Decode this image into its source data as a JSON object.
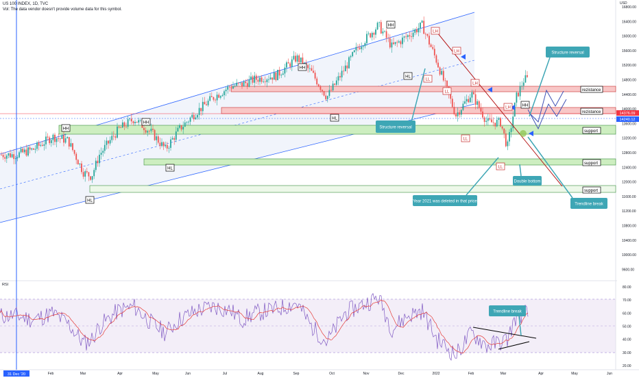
{
  "header": {
    "symbol_line": "US 100 INDEX, 1D, TVC",
    "vol_line": "Vol: The data vendor doesn't provide volume data for this symbol."
  },
  "currency": "USD",
  "price_axis": {
    "ticks": [
      "16800.00",
      "16400.00",
      "16000.00",
      "15600.00",
      "15200.00",
      "14800.00",
      "14400.00",
      "14000.00",
      "13600.00",
      "13200.00",
      "12800.00",
      "12400.00",
      "12000.00",
      "11600.00",
      "11200.00",
      "10800.00",
      "10400.00",
      "10000.00",
      "9600.00"
    ],
    "price_labels": [
      {
        "text": "14376.09",
        "color": "#f23645"
      },
      {
        "text": "14240.12",
        "color": "#2962ff"
      }
    ]
  },
  "rsi": {
    "label": "RSI",
    "ticks": [
      "80.00",
      "70.00",
      "60.00",
      "50.00",
      "40.00",
      "30.00",
      "20.00"
    ]
  },
  "time_axis": {
    "date_badge": "31 Dec '20",
    "ticks": [
      "Feb",
      "Mar",
      "Apr",
      "May",
      "Jun",
      "Jul",
      "Aug",
      "Sep",
      "Oct",
      "Nov",
      "Dec",
      "2022",
      "Feb",
      "Mar",
      "Apr",
      "May",
      "Jun"
    ]
  },
  "markers": [
    "HH",
    "HH",
    "HL",
    "HL",
    "HH",
    "HH",
    "HL",
    "HL",
    "LH",
    "LL",
    "LH",
    "LL",
    "LH",
    "LL",
    "HH"
  ],
  "zone_labels": [
    "rezistance",
    "rezistance",
    "support",
    "support",
    "support"
  ],
  "callouts": [
    "Structure reversal",
    "Structure reversal",
    "Year 2021 was deleted in that price",
    "Double bottom",
    "Trendline break",
    "Trendline break"
  ],
  "colors": {
    "up": "#26a69a",
    "down": "#ef5350",
    "rsi": "#7e57c2",
    "rsi_ma": "#e53935",
    "resistance_fill": "#f8c7c7",
    "support_fill": "#cdeec0",
    "callout": "#3ea6b5",
    "channel": "#2962ff",
    "trendline": "#b71c1c",
    "arrow": "#3f51b5"
  },
  "chart_data": {
    "type": "candlestick",
    "title": "US 100 INDEX, 1D, TVC",
    "ylabel": "USD",
    "ylim": [
      9400,
      17200
    ],
    "x": [
      "2020-12-31",
      "2021-01-15",
      "2021-02-01",
      "2021-02-15",
      "2021-03-01",
      "2021-03-08",
      "2021-03-15",
      "2021-04-01",
      "2021-04-15",
      "2021-05-01",
      "2021-05-13",
      "2021-05-25",
      "2021-06-10",
      "2021-06-25",
      "2021-07-10",
      "2021-07-20",
      "2021-08-01",
      "2021-08-20",
      "2021-09-07",
      "2021-09-20",
      "2021-10-04",
      "2021-10-20",
      "2021-11-01",
      "2021-11-19",
      "2021-12-01",
      "2021-12-15",
      "2021-12-28",
      "2022-01-10",
      "2022-01-27",
      "2022-02-10",
      "2022-02-24",
      "2022-03-08",
      "2022-03-14",
      "2022-03-22",
      "2022-03-29"
    ],
    "close": [
      12900,
      13050,
      13400,
      13300,
      12400,
      12300,
      12900,
      13600,
      13900,
      13500,
      13050,
      13600,
      14100,
      14500,
      14800,
      14850,
      15000,
      15100,
      15600,
      15200,
      14500,
      15300,
      15900,
      16500,
      15900,
      16200,
      16500,
      15500,
      14000,
      14600,
      13800,
      13800,
      13100,
      14500,
      15000
    ],
    "rsi": [
      58,
      55,
      60,
      52,
      37,
      40,
      50,
      62,
      65,
      52,
      45,
      55,
      62,
      65,
      62,
      55,
      60,
      63,
      68,
      50,
      38,
      60,
      65,
      72,
      48,
      58,
      62,
      40,
      28,
      45,
      35,
      38,
      40,
      58,
      60
    ],
    "rsi_ylim": [
      20,
      80
    ]
  }
}
